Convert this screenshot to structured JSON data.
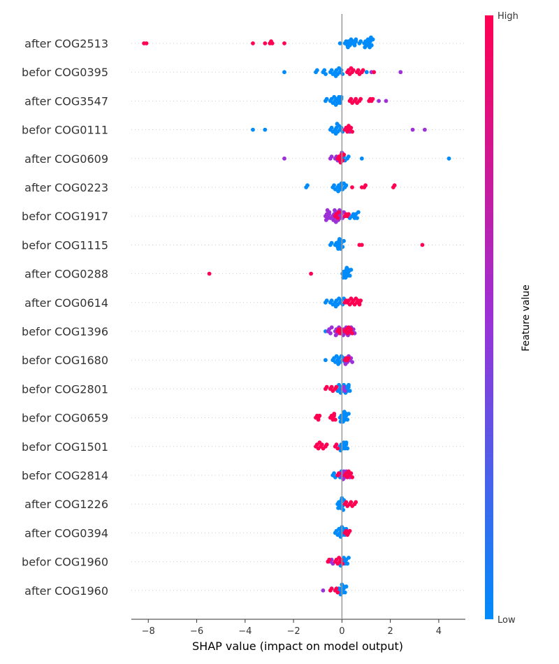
{
  "chart_data": {
    "type": "scatter",
    "subtype": "shap-beeswarm",
    "xlabel": "SHAP value (impact on model output)",
    "xlim": [
      -8.7,
      5.1
    ],
    "xticks": [
      -8,
      -6,
      -4,
      -2,
      0,
      2,
      4
    ],
    "colorbar": {
      "title": "Feature value",
      "high_label": "High",
      "low_label": "Low",
      "low_color": "#008bfb",
      "mid_color": "#9b31d6",
      "high_color": "#ff0052"
    },
    "zero_line_color": "#999999",
    "features": [
      {
        "name": "after COG2513",
        "lows": [
          [
            0.0,
            0.1
          ],
          [
            0.2,
            0.3
          ],
          [
            0.4,
            0.2
          ],
          [
            0.6,
            0.2
          ],
          [
            0.8,
            0.2
          ],
          [
            1.0,
            0.5
          ],
          [
            1.2,
            0.6
          ],
          [
            1.1,
            0.4
          ],
          [
            0.3,
            0.5
          ],
          [
            0.5,
            0.4
          ]
        ],
        "highs": [
          [
            -8.0,
            0.1
          ],
          [
            -8.1,
            0.1
          ],
          [
            -3.6,
            0.1
          ],
          [
            -3.1,
            0.1
          ],
          [
            -2.9,
            0.2
          ],
          [
            -2.8,
            0.1
          ],
          [
            -2.3,
            0.1
          ]
        ]
      },
      {
        "name": "befor COG0395",
        "lows": [
          [
            -2.3,
            0.1
          ],
          [
            -1.0,
            0.2
          ],
          [
            -0.7,
            0.3
          ],
          [
            -0.4,
            0.3
          ],
          [
            -0.2,
            0.5
          ],
          [
            0.0,
            0.3
          ],
          [
            1.1,
            0.1
          ]
        ],
        "mids": [
          [
            2.5,
            0.1
          ],
          [
            1.3,
            0.1
          ],
          [
            0.9,
            0.1
          ]
        ],
        "highs": [
          [
            0.3,
            0.4
          ],
          [
            0.7,
            0.3
          ],
          [
            1.4,
            0.1
          ],
          [
            0.9,
            0.2
          ],
          [
            0.5,
            0.2
          ]
        ]
      },
      {
        "name": "after COG3547",
        "lows": [
          [
            -0.6,
            0.2
          ],
          [
            -0.4,
            0.4
          ],
          [
            -0.2,
            0.5
          ],
          [
            -0.1,
            0.4
          ],
          [
            0.0,
            0.2
          ]
        ],
        "mids": [
          [
            1.6,
            0.1
          ],
          [
            1.9,
            0.1
          ],
          [
            1.2,
            0.1
          ]
        ],
        "highs": [
          [
            0.4,
            0.3
          ],
          [
            0.6,
            0.3
          ],
          [
            0.8,
            0.2
          ],
          [
            1.2,
            0.2
          ],
          [
            1.3,
            0.2
          ]
        ]
      },
      {
        "name": "befor COG0111",
        "lows": [
          [
            -3.6,
            0.1
          ],
          [
            -3.1,
            0.1
          ],
          [
            -0.4,
            0.3
          ],
          [
            -0.2,
            0.6
          ],
          [
            0.0,
            0.3
          ]
        ],
        "mids": [
          [
            3.0,
            0.1
          ],
          [
            3.5,
            0.1
          ],
          [
            0.3,
            0.3
          ]
        ],
        "highs": [
          [
            0.2,
            0.4
          ],
          [
            0.4,
            0.3
          ],
          [
            0.3,
            0.2
          ]
        ]
      },
      {
        "name": "after COG0609",
        "lows": [
          [
            4.5,
            0.1
          ],
          [
            0.9,
            0.1
          ],
          [
            0.3,
            0.2
          ],
          [
            0.1,
            0.3
          ]
        ],
        "mids": [
          [
            -2.3,
            0.1
          ],
          [
            -0.4,
            0.2
          ],
          [
            -0.2,
            0.3
          ],
          [
            0.0,
            0.6
          ]
        ],
        "highs": [
          [
            -0.1,
            0.4
          ],
          [
            0.0,
            0.5
          ]
        ]
      },
      {
        "name": "after COG0223",
        "lows": [
          [
            -1.4,
            0.2
          ],
          [
            -0.3,
            0.3
          ],
          [
            -0.1,
            0.5
          ],
          [
            0.0,
            0.4
          ],
          [
            0.2,
            0.2
          ]
        ],
        "highs": [
          [
            2.2,
            0.2
          ],
          [
            1.0,
            0.2
          ],
          [
            0.5,
            0.1
          ],
          [
            0.9,
            0.1
          ]
        ]
      },
      {
        "name": "befor COG1917",
        "lows": [
          [
            0.5,
            0.3
          ],
          [
            0.6,
            0.4
          ],
          [
            0.3,
            0.3
          ]
        ],
        "mids": [
          [
            -0.6,
            0.6
          ],
          [
            -0.3,
            0.7
          ],
          [
            -0.1,
            0.6
          ],
          [
            0.0,
            0.4
          ],
          [
            -0.5,
            0.3
          ]
        ],
        "highs": [
          [
            -0.2,
            0.4
          ],
          [
            0.2,
            0.2
          ],
          [
            0.3,
            0.2
          ]
        ]
      },
      {
        "name": "befor COG1115",
        "lows": [
          [
            -0.4,
            0.2
          ],
          [
            -0.2,
            0.4
          ],
          [
            -0.1,
            0.6
          ],
          [
            0.0,
            0.5
          ]
        ],
        "highs": [
          [
            3.4,
            0.1
          ],
          [
            0.9,
            0.1
          ],
          [
            0.8,
            0.1
          ]
        ]
      },
      {
        "name": "after COG0288",
        "lows": [
          [
            0.1,
            0.5
          ],
          [
            0.2,
            0.6
          ],
          [
            0.3,
            0.4
          ],
          [
            0.15,
            0.3
          ]
        ],
        "highs": [
          [
            -5.4,
            0.1
          ],
          [
            -1.2,
            0.1
          ]
        ]
      },
      {
        "name": "after COG0614",
        "lows": [
          [
            -0.6,
            0.2
          ],
          [
            -0.4,
            0.3
          ],
          [
            -0.2,
            0.5
          ],
          [
            0.0,
            0.4
          ]
        ],
        "highs": [
          [
            0.3,
            0.4
          ],
          [
            0.5,
            0.4
          ],
          [
            0.7,
            0.3
          ],
          [
            0.8,
            0.2
          ],
          [
            0.2,
            0.2
          ]
        ]
      },
      {
        "name": "befor COG1396",
        "lows": [
          [
            -0.6,
            0.1
          ]
        ],
        "mids": [
          [
            -0.5,
            0.4
          ],
          [
            -0.2,
            0.5
          ],
          [
            0.1,
            0.5
          ],
          [
            0.3,
            0.5
          ],
          [
            0.5,
            0.3
          ]
        ],
        "highs": [
          [
            -0.1,
            0.3
          ],
          [
            0.2,
            0.4
          ],
          [
            0.4,
            0.3
          ],
          [
            0.0,
            0.2
          ]
        ]
      },
      {
        "name": "befor COG1680",
        "lows": [
          [
            -0.6,
            0.1
          ],
          [
            -0.3,
            0.4
          ],
          [
            -0.1,
            0.5
          ],
          [
            0.1,
            0.3
          ]
        ],
        "mids": [
          [
            0.2,
            0.5
          ],
          [
            0.4,
            0.3
          ]
        ],
        "highs": [
          [
            0.3,
            0.2
          ],
          [
            0.2,
            0.2
          ]
        ]
      },
      {
        "name": "befor COG2801",
        "lows": [
          [
            -0.2,
            0.4
          ],
          [
            0.0,
            0.5
          ],
          [
            0.2,
            0.5
          ],
          [
            0.3,
            0.3
          ]
        ],
        "mids": [
          [
            0.1,
            0.3
          ]
        ],
        "highs": [
          [
            -0.6,
            0.2
          ],
          [
            -0.4,
            0.3
          ],
          [
            -0.2,
            0.2
          ]
        ]
      },
      {
        "name": "befor COG0659",
        "lows": [
          [
            0.0,
            0.5
          ],
          [
            0.1,
            0.6
          ],
          [
            0.2,
            0.4
          ]
        ],
        "highs": [
          [
            -1.0,
            0.3
          ],
          [
            -0.9,
            0.2
          ],
          [
            -0.4,
            0.4
          ],
          [
            -0.3,
            0.3
          ]
        ]
      },
      {
        "name": "befor COG1501",
        "lows": [
          [
            0.0,
            0.5
          ],
          [
            0.1,
            0.4
          ],
          [
            0.2,
            0.3
          ]
        ],
        "highs": [
          [
            -1.0,
            0.4
          ],
          [
            -0.8,
            0.3
          ],
          [
            -0.6,
            0.2
          ],
          [
            -0.2,
            0.3
          ]
        ]
      },
      {
        "name": "befor COG2814",
        "lows": [
          [
            -0.3,
            0.3
          ],
          [
            -0.1,
            0.4
          ]
        ],
        "mids": [
          [
            0.1,
            0.5
          ],
          [
            0.3,
            0.3
          ],
          [
            0.0,
            0.4
          ]
        ],
        "highs": [
          [
            0.2,
            0.4
          ],
          [
            0.4,
            0.3
          ],
          [
            -0.1,
            0.2
          ]
        ]
      },
      {
        "name": "after COG1226",
        "lows": [
          [
            0.0,
            0.7
          ],
          [
            -0.1,
            0.5
          ],
          [
            0.0,
            0.4
          ]
        ],
        "highs": [
          [
            0.2,
            0.3
          ],
          [
            0.4,
            0.3
          ],
          [
            0.6,
            0.2
          ]
        ]
      },
      {
        "name": "after COG0394",
        "lows": [
          [
            -0.2,
            0.4
          ],
          [
            0.0,
            0.6
          ],
          [
            0.1,
            0.4
          ]
        ],
        "highs": [
          [
            0.2,
            0.3
          ],
          [
            0.35,
            0.2
          ]
        ]
      },
      {
        "name": "befor COG1960",
        "lows": [
          [
            0.0,
            0.5
          ],
          [
            0.2,
            0.4
          ],
          [
            0.1,
            0.3
          ]
        ],
        "mids": [
          [
            -0.4,
            0.3
          ]
        ],
        "highs": [
          [
            -0.2,
            0.4
          ],
          [
            0.0,
            0.3
          ],
          [
            -0.5,
            0.2
          ]
        ]
      },
      {
        "name": "after COG1960",
        "lows": [
          [
            0.0,
            0.6
          ],
          [
            0.1,
            0.4
          ],
          [
            -0.1,
            0.3
          ]
        ],
        "mids": [
          [
            -0.7,
            0.1
          ]
        ],
        "highs": [
          [
            -0.2,
            0.3
          ],
          [
            -0.4,
            0.2
          ]
        ]
      }
    ]
  }
}
